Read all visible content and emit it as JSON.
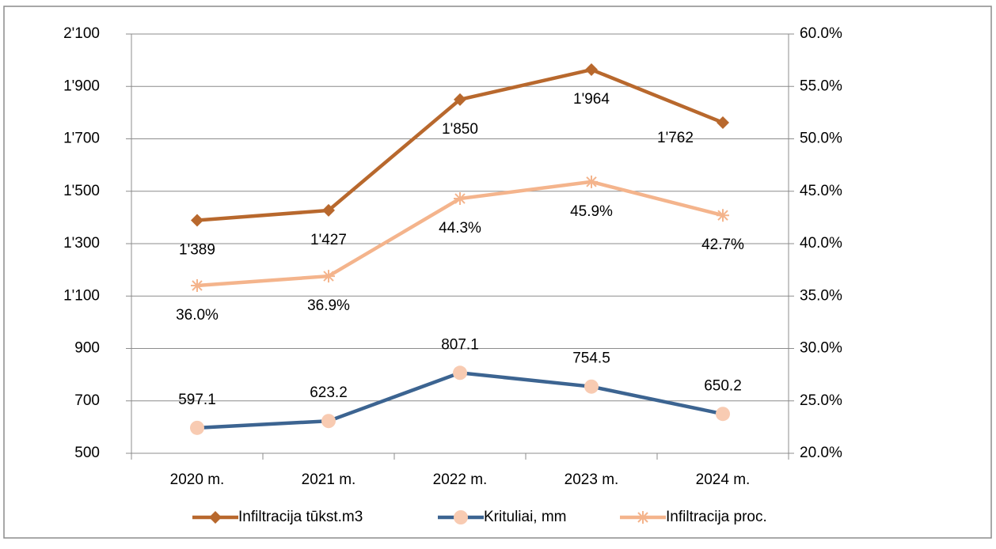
{
  "chart_data": {
    "type": "line",
    "categories": [
      "2020 m.",
      "2021 m.",
      "2022 m.",
      "2023 m.",
      "2024 m."
    ],
    "series": [
      {
        "name": "Infiltracija tūkst.m3",
        "color": "#b8682d",
        "marker": "diamond",
        "values": [
          1389,
          1427,
          1850,
          1964,
          1762
        ],
        "value_labels": [
          "1'389",
          "1'427",
          "1'850",
          "1'964",
          "1'762"
        ]
      },
      {
        "name": "Krituliai, mm",
        "color": "#3c6491",
        "marker": "circle",
        "marker_color": "#f8cbb2",
        "values": [
          597.1,
          623.2,
          807.1,
          754.5,
          650.2
        ]
      },
      {
        "name": "Infiltracija  proc.",
        "color": "#f4b48c",
        "marker": "star",
        "axis": "y2",
        "values": [
          36.0,
          36.9,
          44.3,
          45.9,
          42.7
        ],
        "value_labels": [
          "36.0%",
          "36.9%",
          "44.3%",
          "45.9%",
          "42.7%"
        ]
      }
    ],
    "ylim": [
      500,
      2100
    ],
    "yticks": [
      500,
      700,
      900,
      {
        "value": 1100,
        "label": "1'100"
      },
      {
        "value": 1300,
        "label": "1'300"
      },
      {
        "value": 1500,
        "label": "1'500"
      },
      {
        "value": 1700,
        "label": "1'700"
      },
      {
        "value": 1900,
        "label": "1'900"
      },
      {
        "value": 2100,
        "label": "2'100"
      }
    ],
    "y2lim": [
      20,
      60
    ],
    "y2ticks": [
      {
        "value": 20,
        "label": "20.0%"
      },
      {
        "value": 25,
        "label": "25.0%"
      },
      {
        "value": 30,
        "label": "30.0%"
      },
      {
        "value": 35,
        "label": "35.0%"
      },
      {
        "value": 40,
        "label": "40.0%"
      },
      {
        "value": 45,
        "label": "45.0%"
      },
      {
        "value": 50,
        "label": "50.0%"
      },
      {
        "value": 55,
        "label": "55.0%"
      },
      {
        "value": 60,
        "label": "60.0%"
      }
    ],
    "grid": true,
    "legend": "bottom"
  }
}
